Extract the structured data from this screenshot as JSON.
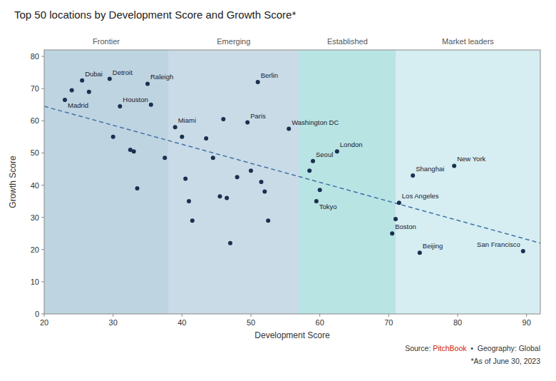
{
  "chart_data": {
    "type": "scatter",
    "title": "Top 50 locations by Development Score and Growth Score*",
    "x_label": "Development Score",
    "y_label": "Growth Score",
    "xlim": [
      20,
      92
    ],
    "ylim": [
      0,
      82
    ],
    "xticks": [
      20,
      30,
      40,
      50,
      60,
      70,
      80,
      90
    ],
    "yticks": [
      0,
      10,
      20,
      30,
      40,
      50,
      60,
      70,
      80
    ],
    "grid": false,
    "zones": [
      {
        "label": "Frontier",
        "xmin": 20,
        "xmax": 38,
        "color": "#8ab0c8"
      },
      {
        "label": "Emerging",
        "xmin": 38,
        "xmax": 57,
        "color": "#9dbdd4"
      },
      {
        "label": "Established",
        "xmin": 57,
        "xmax": 71,
        "color": "#7ecece"
      },
      {
        "label": "Market leaders",
        "xmin": 71,
        "xmax": 92,
        "color": "#b5e0e8"
      }
    ],
    "trendline": {
      "x": [
        20,
        92
      ],
      "values": [
        64.5,
        22.0
      ],
      "color": "#4472a8",
      "line_style": "dashed"
    },
    "series": [
      {
        "color": "#1a3050",
        "x": [
          24.0,
          26.5,
          30.0,
          32.5,
          33.0,
          33.5,
          35.5,
          37.5,
          40.0,
          40.5,
          41.0,
          41.5,
          43.5,
          44.5,
          45.5,
          46.0,
          46.5,
          47.0,
          48.0,
          50.0,
          51.5,
          52.0,
          52.5,
          58.5,
          60.0,
          71.0
        ],
        "values": [
          69.5,
          69.0,
          55.0,
          51.0,
          50.5,
          39.0,
          65.0,
          48.5,
          55.0,
          42.0,
          35.0,
          29.0,
          54.5,
          48.5,
          36.5,
          60.5,
          36.0,
          22.0,
          42.5,
          44.5,
          41.0,
          38.0,
          29.0,
          44.5,
          38.5,
          29.5
        ]
      },
      {
        "color": "#1a3050",
        "x": [
          23.0,
          25.5,
          29.5,
          35.0,
          31.0,
          39.0,
          49.5,
          51.0,
          55.5,
          59.0,
          62.5,
          59.5,
          71.5,
          70.5,
          73.5,
          79.5,
          74.5,
          89.5
        ],
        "values": [
          66.5,
          72.5,
          73.0,
          71.5,
          64.5,
          58.0,
          59.5,
          72.0,
          57.5,
          47.5,
          50.5,
          35.0,
          34.5,
          25.0,
          43.0,
          46.0,
          19.0,
          19.5
        ],
        "point_labels": [
          "Madrid",
          "Dubai",
          "Detroit",
          "Raleigh",
          "Houston",
          "Miami",
          "Paris",
          "Berlin",
          "Washington DC",
          "Seoul",
          "London",
          "Tokyo",
          "Los Angeles",
          "Boston",
          "Shanghai",
          "New York",
          "Beijing",
          "San Francisco"
        ]
      }
    ],
    "source": [
      {
        "text": "Source: "
      },
      {
        "text": "PitchBook",
        "color": "#cc2200"
      },
      {
        "text": "  •  Geography: Global"
      }
    ],
    "note": "*As of June 30, 2023"
  }
}
